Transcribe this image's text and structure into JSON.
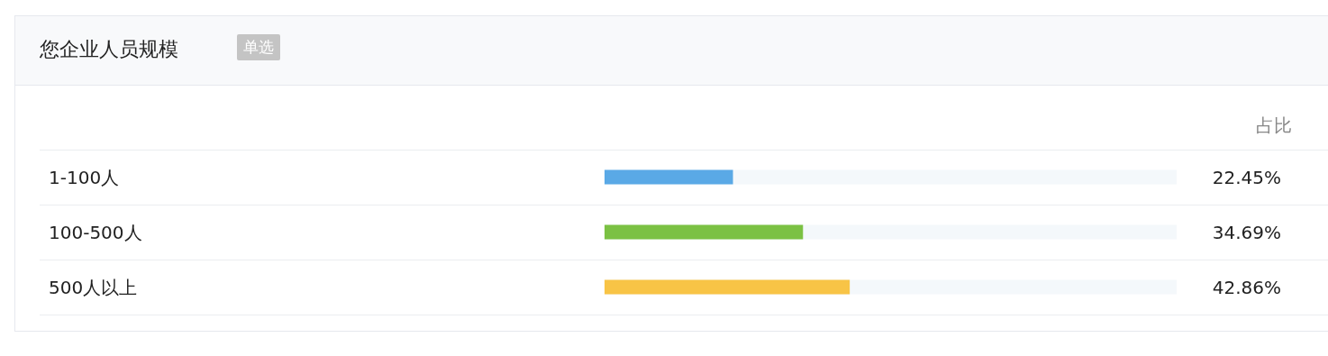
{
  "chart_data": {
    "type": "bar",
    "orientation": "horizontal",
    "title": "您企业人员规模",
    "categories": [
      "1-100人",
      "100-500人",
      "500人以上"
    ],
    "values": [
      22.45,
      34.69,
      42.86
    ],
    "colors": [
      "#5aa9e6",
      "#7bc143",
      "#f8c446"
    ],
    "value_labels": [
      "22.45%",
      "34.69%",
      "42.86%"
    ],
    "xlim": [
      0,
      100
    ],
    "tick_labels": "y",
    "grid": false,
    "annotations": [
      "单选",
      "占比"
    ]
  }
}
